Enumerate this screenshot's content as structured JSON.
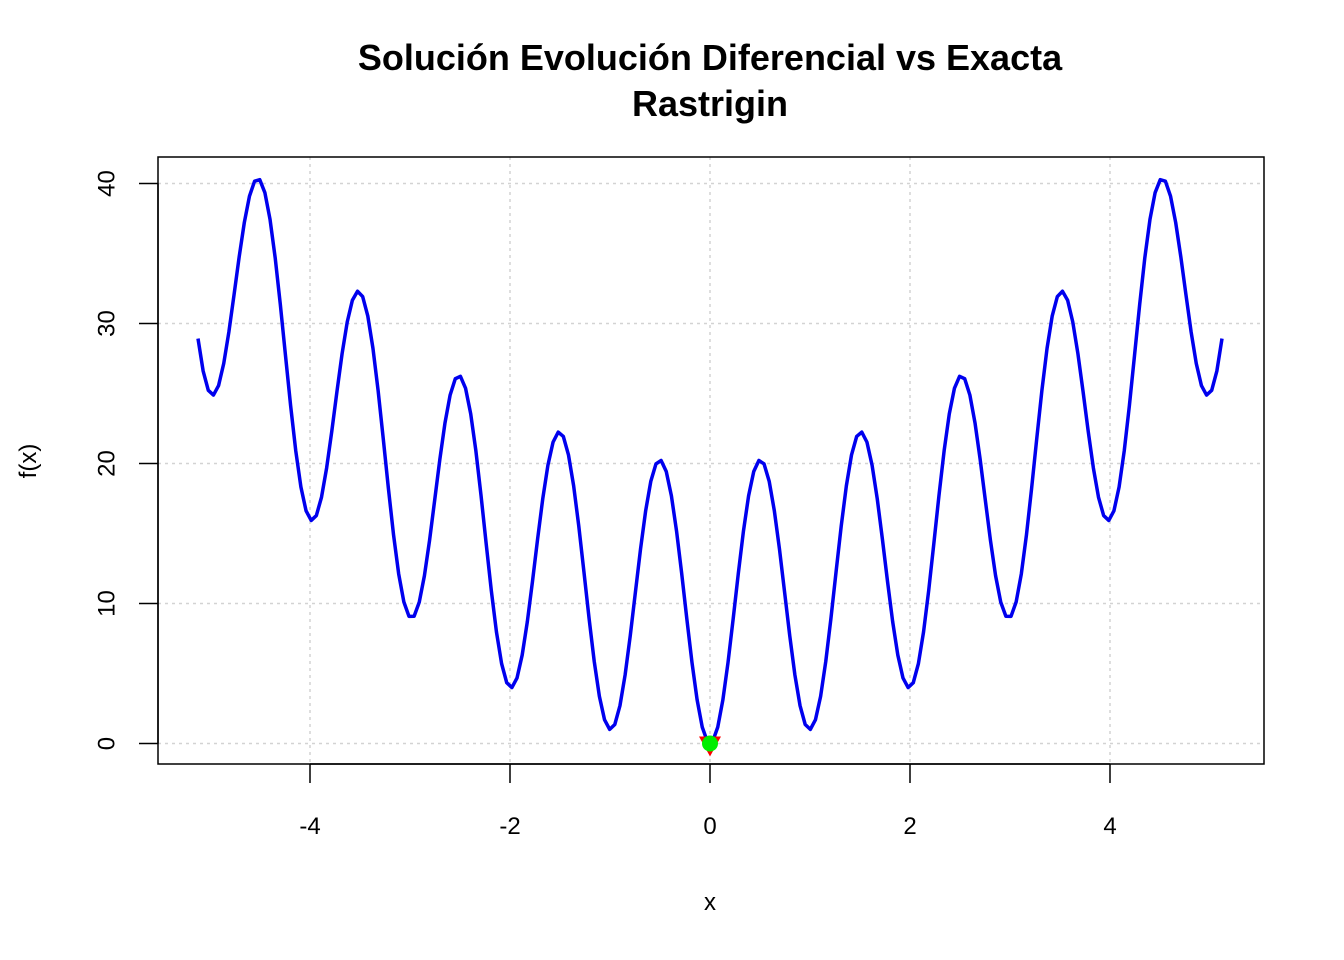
{
  "chart_data": {
    "type": "line",
    "title": "Solución Evolución Diferencial vs Exacta",
    "subtitle": "Rastrigin",
    "xlabel": "x",
    "ylabel": "f(x)",
    "xlim": [
      -5.12,
      5.12
    ],
    "ylim": [
      0,
      40
    ],
    "x_ticks": [
      -4,
      -2,
      0,
      2,
      4
    ],
    "y_ticks": [
      0,
      10,
      20,
      30,
      40
    ],
    "grid": true,
    "function": "10 + x^2 - 10*cos(2*pi*x)",
    "x_range": [
      -5.12,
      5.12
    ],
    "colors": {
      "series": "#0000ee",
      "exact_marker": "#ff0000",
      "de_marker": "#00ee00"
    },
    "series": [
      {
        "type": "line",
        "function": "10 + x^2 - 10*cos(2*pi*x)"
      }
    ],
    "points": [
      {
        "marker": "triangle-down",
        "x": 0,
        "y": 0,
        "color": "#ff0000"
      },
      {
        "marker": "circle",
        "x": 0,
        "y": 0,
        "color": "#00ee00"
      }
    ]
  }
}
